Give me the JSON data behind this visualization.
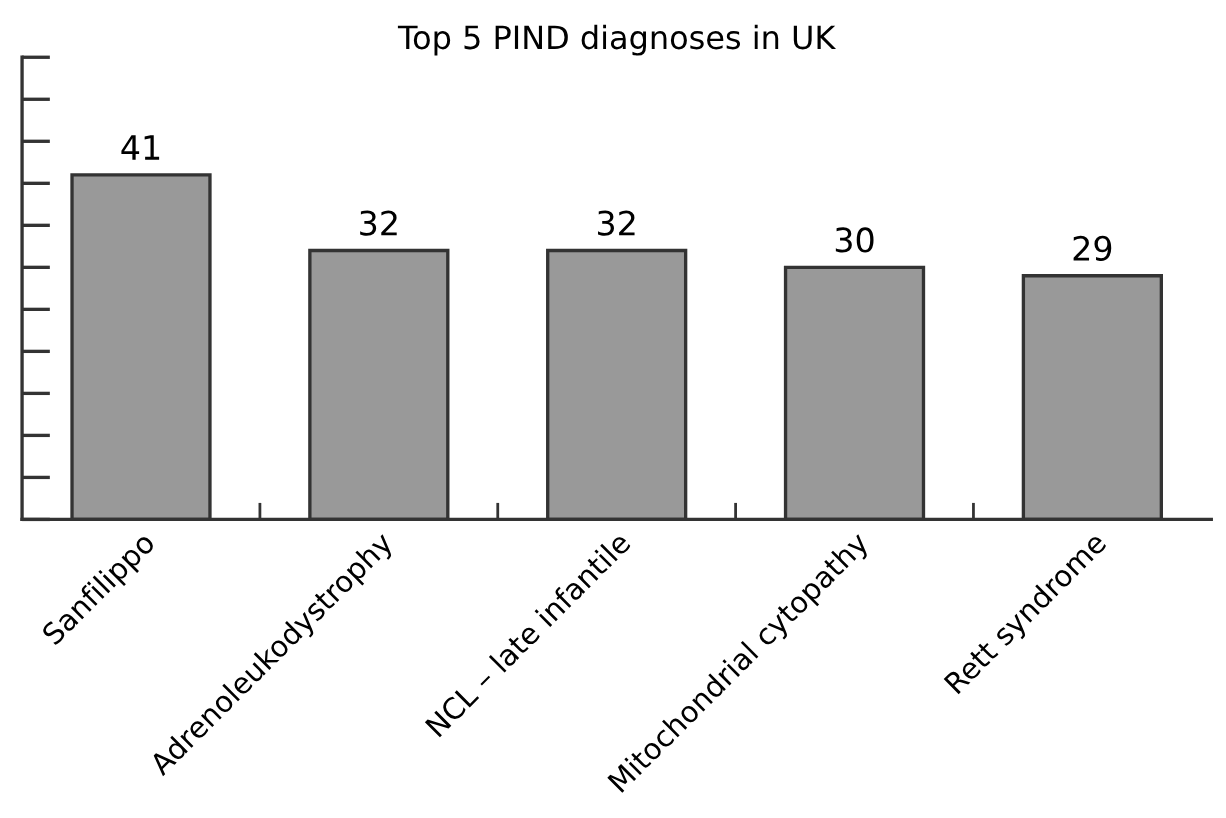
{
  "chart_data": {
    "type": "bar",
    "title": "Top 5 PIND diagnoses in UK",
    "categories": [
      "Sanfilippo",
      "Adrenoleukodystrophy",
      "NCL – late infantile",
      "Mitochondrial cytopathy",
      "Rett syndrome"
    ],
    "values": [
      41,
      32,
      32,
      30,
      29
    ],
    "color": "#999999",
    "ylim": [
      0,
      55
    ],
    "yticks": [
      {
        "value": 0,
        "label": null
      },
      {
        "value": 5,
        "label": null
      },
      {
        "value": 10,
        "label": null
      },
      {
        "value": 15,
        "label": null
      },
      {
        "value": 20,
        "label": null
      },
      {
        "value": 25,
        "label": null
      },
      {
        "value": 30,
        "label": null
      },
      {
        "value": 35,
        "label": null
      },
      {
        "value": 40,
        "label": null
      },
      {
        "value": 45,
        "label": null
      },
      {
        "value": 50,
        "label": null
      },
      {
        "value": 55,
        "label": null
      }
    ],
    "tick_labels": "x",
    "data_labels": true,
    "grid": false
  }
}
